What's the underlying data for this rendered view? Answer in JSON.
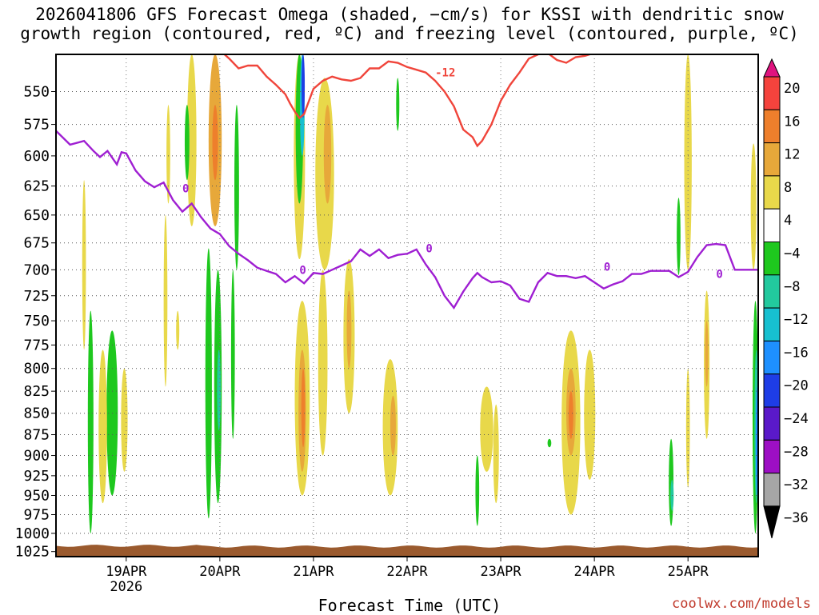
{
  "title_line1": "2026041806 GFS Forecast Omega (shaded, −cm/s) for KSSI with dendritic snow",
  "title_line2": "growth region (contoured, red, ºC) and freezing level (contoured, purple, ºC)",
  "credit": "coolwx.com/models",
  "chart_data": {
    "type": "heatmap",
    "xlabel": "Forecast Time (UTC)",
    "x_ticks": [
      "19APR",
      "20APR",
      "21APR",
      "22APR",
      "23APR",
      "24APR",
      "25APR"
    ],
    "x_year": "2026",
    "x_range_days": [
      18.25,
      25.75
    ],
    "y_ticks": [
      550,
      575,
      600,
      625,
      650,
      675,
      700,
      725,
      750,
      775,
      800,
      825,
      850,
      875,
      900,
      925,
      950,
      975,
      1000,
      1025
    ],
    "y_range_hpa": [
      523,
      1032
    ],
    "y_scale": "log-pressure",
    "grid": true,
    "colorbar_levels": [
      "20",
      "16",
      "12",
      "8",
      "4",
      "−4",
      "−8",
      "−12",
      "−16",
      "−20",
      "−24",
      "−28",
      "−32",
      "−36"
    ],
    "colorbar_colors": [
      "#e0137f",
      "#f5433d",
      "#ee7f2c",
      "#e7a83a",
      "#e8d84a",
      "#ffffff",
      "#1ec81e",
      "#22c99e",
      "#17c0d0",
      "#1e90ff",
      "#1e3de6",
      "#5a19c9",
      "#9d0fc4",
      "#a6a6a6",
      "#000000"
    ],
    "contour_labels": {
      "dgz": "-12",
      "freezing": "0"
    },
    "freezing_level": {
      "days": [
        18.25,
        18.4,
        18.55,
        18.65,
        18.72,
        18.8,
        18.9,
        18.95,
        19.0,
        19.1,
        19.2,
        19.3,
        19.4,
        19.5,
        19.6,
        19.7,
        19.8,
        19.9,
        20.0,
        20.1,
        20.2,
        20.3,
        20.4,
        20.5,
        20.6,
        20.7,
        20.8,
        20.9,
        21.0,
        21.1,
        21.2,
        21.3,
        21.4,
        21.5,
        21.6,
        21.7,
        21.8,
        21.9,
        22.0,
        22.1,
        22.2,
        22.3,
        22.4,
        22.5,
        22.6,
        22.7,
        22.75,
        22.8,
        22.9,
        23.0,
        23.1,
        23.2,
        23.3,
        23.4,
        23.5,
        23.6,
        23.7,
        23.8,
        23.9,
        24.0,
        24.1,
        24.2,
        24.3,
        24.4,
        24.5,
        24.6,
        24.7,
        24.8,
        24.9,
        25.0,
        25.1,
        25.2,
        25.3,
        25.4,
        25.5,
        25.6,
        25.7,
        25.75
      ],
      "hpa": [
        580,
        591,
        588,
        596,
        601,
        596,
        607,
        597,
        598,
        612,
        621,
        626,
        622,
        637,
        647,
        640,
        652,
        662,
        667,
        678,
        685,
        691,
        698,
        701,
        704,
        712,
        706,
        713,
        703,
        704,
        700,
        696,
        692,
        681,
        687,
        681,
        689,
        686,
        685,
        681,
        695,
        707,
        725,
        737,
        721,
        708,
        703,
        707,
        712,
        711,
        715,
        728,
        731,
        712,
        703,
        706,
        706,
        708,
        706,
        712,
        718,
        714,
        711,
        704,
        704,
        701,
        701,
        701,
        707,
        702,
        688,
        677,
        676,
        677,
        700,
        700,
        700,
        700
      ]
    },
    "dgz_minus12": {
      "days": [
        20.05,
        20.1,
        20.2,
        20.3,
        20.4,
        20.5,
        20.6,
        20.7,
        20.75,
        20.8,
        20.85,
        20.9,
        21.0,
        21.1,
        21.2,
        21.3,
        21.4,
        21.5,
        21.6,
        21.7,
        21.8,
        21.9,
        22.0,
        22.1,
        22.2,
        22.3,
        22.4,
        22.5,
        22.6,
        22.7,
        22.75,
        22.8,
        22.9,
        23.0,
        23.1,
        23.2,
        23.3,
        23.4,
        23.5,
        23.6,
        23.7,
        23.8,
        23.9,
        24.0,
        24.1,
        24.2
      ],
      "hpa": [
        523,
        526,
        533,
        531,
        531,
        539,
        545,
        552,
        559,
        565,
        570,
        567,
        548,
        542,
        539,
        541,
        542,
        540,
        533,
        533,
        528,
        529,
        532,
        534,
        536,
        542,
        550,
        561,
        579,
        585,
        592,
        588,
        575,
        557,
        545,
        536,
        526,
        523,
        522,
        527,
        529,
        525,
        524,
        522,
        520,
        520
      ]
    },
    "omega_cells": [
      {
        "d": 18.55,
        "p1": 620,
        "p2": 780,
        "w": 0.04,
        "c": 5
      },
      {
        "d": 18.62,
        "p1": 740,
        "p2": 1000,
        "w": 0.06,
        "c": 6
      },
      {
        "d": 18.85,
        "p1": 760,
        "p2": 950,
        "w": 0.12,
        "c": 6
      },
      {
        "d": 18.75,
        "p1": 780,
        "p2": 960,
        "w": 0.09,
        "c": 4
      },
      {
        "d": 18.98,
        "p1": 800,
        "p2": 920,
        "w": 0.07,
        "c": 4
      },
      {
        "d": 19.42,
        "p1": 650,
        "p2": 820,
        "w": 0.04,
        "c": 4
      },
      {
        "d": 19.45,
        "p1": 560,
        "p2": 640,
        "w": 0.04,
        "c": 4
      },
      {
        "d": 19.55,
        "p1": 740,
        "p2": 780,
        "w": 0.03,
        "c": 4
      },
      {
        "d": 19.7,
        "p1": 523,
        "p2": 660,
        "w": 0.1,
        "c": 4
      },
      {
        "d": 19.65,
        "p1": 560,
        "p2": 620,
        "w": 0.05,
        "c": 6
      },
      {
        "d": 19.95,
        "p1": 523,
        "p2": 660,
        "w": 0.14,
        "c": 3
      },
      {
        "d": 19.95,
        "p1": 560,
        "p2": 620,
        "w": 0.06,
        "c": 2
      },
      {
        "d": 20.18,
        "p1": 560,
        "p2": 700,
        "w": 0.05,
        "c": 6
      },
      {
        "d": 19.88,
        "p1": 680,
        "p2": 980,
        "w": 0.07,
        "c": 6
      },
      {
        "d": 19.98,
        "p1": 700,
        "p2": 960,
        "w": 0.08,
        "c": 6
      },
      {
        "d": 19.99,
        "p1": 780,
        "p2": 870,
        "w": 0.04,
        "c": 7
      },
      {
        "d": 20.14,
        "p1": 700,
        "p2": 880,
        "w": 0.04,
        "c": 6
      },
      {
        "d": 20.85,
        "p1": 523,
        "p2": 690,
        "w": 0.12,
        "c": 4
      },
      {
        "d": 20.85,
        "p1": 523,
        "p2": 640,
        "w": 0.08,
        "c": 6
      },
      {
        "d": 20.88,
        "p1": 523,
        "p2": 600,
        "w": 0.05,
        "c": 8
      },
      {
        "d": 20.89,
        "p1": 523,
        "p2": 570,
        "w": 0.025,
        "c": 10
      },
      {
        "d": 21.12,
        "p1": 540,
        "p2": 700,
        "w": 0.2,
        "c": 4
      },
      {
        "d": 21.15,
        "p1": 560,
        "p2": 640,
        "w": 0.08,
        "c": 3
      },
      {
        "d": 20.88,
        "p1": 730,
        "p2": 950,
        "w": 0.16,
        "c": 4
      },
      {
        "d": 20.88,
        "p1": 780,
        "p2": 920,
        "w": 0.08,
        "c": 3
      },
      {
        "d": 20.89,
        "p1": 800,
        "p2": 890,
        "w": 0.04,
        "c": 2
      },
      {
        "d": 21.1,
        "p1": 700,
        "p2": 900,
        "w": 0.1,
        "c": 4
      },
      {
        "d": 21.38,
        "p1": 690,
        "p2": 850,
        "w": 0.12,
        "c": 4
      },
      {
        "d": 21.38,
        "p1": 720,
        "p2": 800,
        "w": 0.05,
        "c": 3
      },
      {
        "d": 21.82,
        "p1": 790,
        "p2": 950,
        "w": 0.16,
        "c": 4
      },
      {
        "d": 21.85,
        "p1": 830,
        "p2": 900,
        "w": 0.06,
        "c": 3
      },
      {
        "d": 21.9,
        "p1": 540,
        "p2": 580,
        "w": 0.02,
        "c": 6
      },
      {
        "d": 22.85,
        "p1": 820,
        "p2": 920,
        "w": 0.14,
        "c": 4
      },
      {
        "d": 22.95,
        "p1": 840,
        "p2": 960,
        "w": 0.06,
        "c": 4
      },
      {
        "d": 22.75,
        "p1": 900,
        "p2": 990,
        "w": 0.04,
        "c": 6
      },
      {
        "d": 23.75,
        "p1": 760,
        "p2": 975,
        "w": 0.2,
        "c": 4
      },
      {
        "d": 23.75,
        "p1": 800,
        "p2": 900,
        "w": 0.1,
        "c": 3
      },
      {
        "d": 23.75,
        "p1": 825,
        "p2": 880,
        "w": 0.05,
        "c": 2
      },
      {
        "d": 23.95,
        "p1": 780,
        "p2": 930,
        "w": 0.12,
        "c": 4
      },
      {
        "d": 23.52,
        "p1": 880,
        "p2": 890,
        "w": 0.04,
        "c": 6
      },
      {
        "d": 24.82,
        "p1": 880,
        "p2": 990,
        "w": 0.05,
        "c": 6
      },
      {
        "d": 24.83,
        "p1": 930,
        "p2": 970,
        "w": 0.03,
        "c": 7
      },
      {
        "d": 25.0,
        "p1": 800,
        "p2": 940,
        "w": 0.04,
        "c": 4
      },
      {
        "d": 25.0,
        "p1": 523,
        "p2": 700,
        "w": 0.08,
        "c": 4
      },
      {
        "d": 25.2,
        "p1": 720,
        "p2": 880,
        "w": 0.06,
        "c": 4
      },
      {
        "d": 25.2,
        "p1": 750,
        "p2": 820,
        "w": 0.03,
        "c": 3
      },
      {
        "d": 24.9,
        "p1": 635,
        "p2": 705,
        "w": 0.04,
        "c": 6
      },
      {
        "d": 25.7,
        "p1": 590,
        "p2": 700,
        "w": 0.06,
        "c": 4
      },
      {
        "d": 25.72,
        "p1": 730,
        "p2": 1000,
        "w": 0.06,
        "c": 6
      },
      {
        "d": 25.73,
        "p1": 780,
        "p2": 960,
        "w": 0.04,
        "c": 7
      },
      {
        "d": 25.74,
        "p1": 820,
        "p2": 950,
        "w": 0.025,
        "c": 9
      }
    ]
  }
}
